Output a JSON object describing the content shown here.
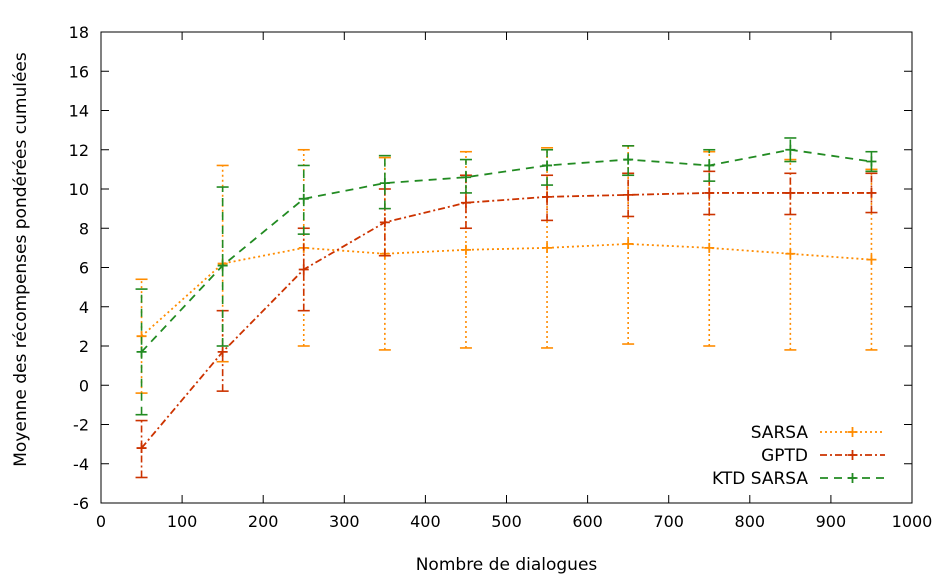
{
  "chart_data": {
    "type": "line",
    "title": "",
    "xlabel": "Nombre de dialogues",
    "ylabel": "Moyenne des récompenses pondérées cumulées",
    "xlim": [
      0,
      1000
    ],
    "ylim": [
      -6,
      18
    ],
    "xticks": [
      0,
      100,
      200,
      300,
      400,
      500,
      600,
      700,
      800,
      900,
      1000
    ],
    "yticks": [
      -6,
      -4,
      -2,
      0,
      2,
      4,
      6,
      8,
      10,
      12,
      14,
      16,
      18
    ],
    "grid": false,
    "legend_position": "bottom-right",
    "x": [
      50,
      150,
      250,
      350,
      450,
      550,
      650,
      750,
      850,
      950
    ],
    "series": [
      {
        "name": "SARSA",
        "color": "#ff8c00",
        "line_style": "dotted",
        "values": [
          2.5,
          6.2,
          7.0,
          6.7,
          6.9,
          7.0,
          7.2,
          7.0,
          6.7,
          6.4
        ],
        "error_low": [
          -0.4,
          1.2,
          2.0,
          1.8,
          1.9,
          1.9,
          2.1,
          2.0,
          1.8,
          1.8
        ],
        "error_high": [
          5.4,
          11.2,
          12.0,
          11.6,
          11.9,
          12.1,
          12.2,
          11.9,
          11.5,
          11.0
        ]
      },
      {
        "name": "GPTD",
        "color": "#cc3300",
        "line_style": "dash-dot",
        "values": [
          -3.2,
          1.7,
          5.9,
          8.3,
          9.3,
          9.6,
          9.7,
          9.8,
          9.8,
          9.8
        ],
        "error_low": [
          -4.7,
          -0.3,
          3.8,
          6.6,
          8.0,
          8.4,
          8.6,
          8.7,
          8.7,
          8.8
        ],
        "error_high": [
          -1.8,
          3.8,
          8.0,
          10.0,
          10.7,
          10.7,
          10.8,
          10.9,
          10.8,
          10.8
        ]
      },
      {
        "name": "KTD SARSA",
        "color": "#228b22",
        "line_style": "dashed",
        "values": [
          1.7,
          6.1,
          9.5,
          10.3,
          10.6,
          11.2,
          11.5,
          11.2,
          12.0,
          11.4
        ],
        "error_low": [
          -1.5,
          2.0,
          7.7,
          9.0,
          9.8,
          10.2,
          10.7,
          10.4,
          11.4,
          10.9
        ],
        "error_high": [
          4.9,
          10.1,
          11.2,
          11.7,
          11.5,
          12.0,
          12.2,
          12.0,
          12.6,
          11.9
        ]
      }
    ]
  }
}
